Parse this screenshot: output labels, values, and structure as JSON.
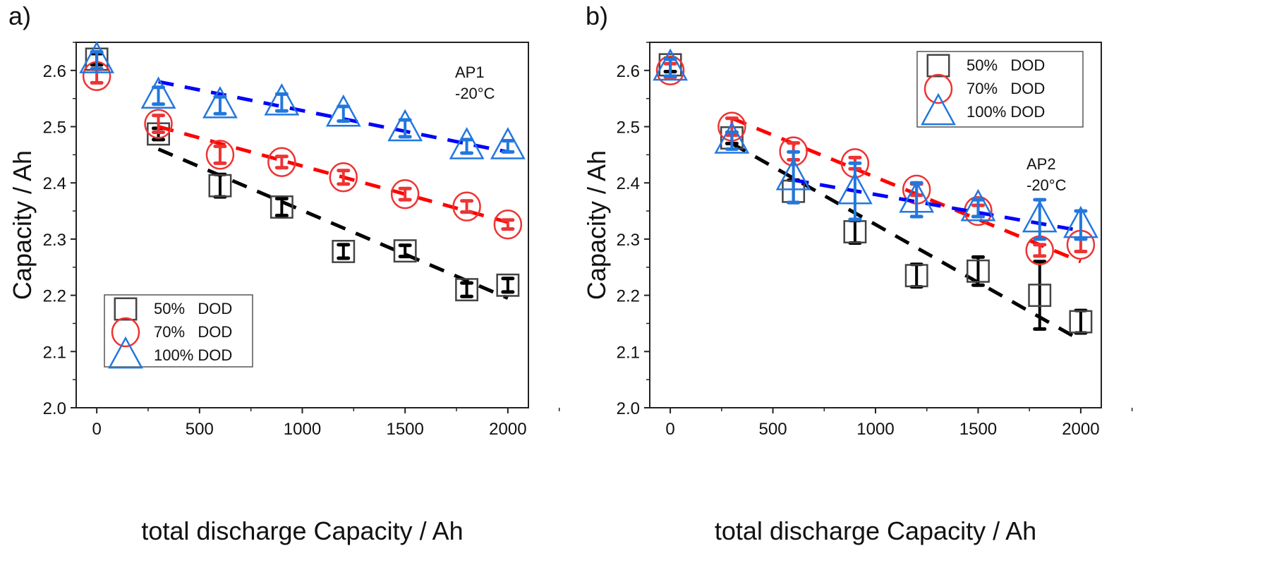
{
  "chart_data": [
    {
      "type": "scatter",
      "panel_label": "a)",
      "annotation": [
        "AP1",
        "-20°C"
      ],
      "xlabel": "total discharge Capacity / Ah",
      "ylabel": "Capacity / Ah",
      "xlim": [
        -100,
        2100
      ],
      "ylim": [
        2.0,
        2.65
      ],
      "xticks": [
        0,
        500,
        1000,
        1500,
        2000
      ],
      "yticks": [
        2.0,
        2.1,
        2.2,
        2.3,
        2.4,
        2.5,
        2.6
      ],
      "legend_position": "bottom-left",
      "x": [
        0,
        300,
        600,
        900,
        1200,
        1500,
        1800,
        2000
      ],
      "series": [
        {
          "name": "50%   DOD",
          "marker": "square",
          "color": "#444444",
          "fit_color": "#000000",
          "values": [
            2.62,
            2.487,
            2.395,
            2.357,
            2.278,
            2.279,
            2.21,
            2.218
          ],
          "errors": [
            0.01,
            0.01,
            0.02,
            0.015,
            0.012,
            0.01,
            0.012,
            0.012
          ],
          "fit": [
            [
              300,
              2.46
            ],
            [
              2000,
              2.195
            ]
          ]
        },
        {
          "name": "70%   DOD",
          "marker": "circle",
          "color": "#ee3333",
          "fit_color": "#ff0000",
          "values": [
            2.59,
            2.505,
            2.45,
            2.437,
            2.41,
            2.38,
            2.358,
            2.326
          ],
          "errors": [
            0.012,
            0.015,
            0.015,
            0.01,
            0.012,
            0.01,
            0.01,
            0.008
          ],
          "fit": [
            [
              300,
              2.5
            ],
            [
              2000,
              2.33
            ]
          ]
        },
        {
          "name": "100% DOD",
          "marker": "triangle",
          "color": "#2277dd",
          "fit_color": "#0000ff",
          "values": [
            2.618,
            2.555,
            2.538,
            2.543,
            2.523,
            2.497,
            2.465,
            2.465
          ],
          "errors": [
            0.015,
            0.015,
            0.015,
            0.015,
            0.013,
            0.015,
            0.012,
            0.01
          ],
          "fit": [
            [
              300,
              2.58
            ],
            [
              2000,
              2.455
            ]
          ]
        }
      ]
    },
    {
      "type": "scatter",
      "panel_label": "b)",
      "annotation": [
        "AP2",
        "-20°C"
      ],
      "xlabel": "total discharge Capacity / Ah",
      "ylabel": "Capacity / Ah",
      "xlim": [
        -100,
        2100
      ],
      "ylim": [
        2.0,
        2.65
      ],
      "xticks": [
        0,
        500,
        1000,
        1500,
        2000
      ],
      "yticks": [
        2.0,
        2.1,
        2.2,
        2.3,
        2.4,
        2.5,
        2.6
      ],
      "legend_position": "top-right",
      "x": [
        0,
        300,
        600,
        900,
        1200,
        1500,
        1800,
        2000
      ],
      "series": [
        {
          "name": "50%   DOD",
          "marker": "square",
          "color": "#444444",
          "fit_color": "#000000",
          "values": [
            2.61,
            2.48,
            2.385,
            2.313,
            2.235,
            2.243,
            2.2,
            2.153
          ],
          "errors": [
            0.012,
            0.01,
            0.02,
            0.02,
            0.02,
            0.025,
            0.06,
            0.02
          ],
          "fit": [
            [
              300,
              2.47
            ],
            [
              2000,
              2.12
            ]
          ]
        },
        {
          "name": "70%   DOD",
          "marker": "circle",
          "color": "#ee3333",
          "fit_color": "#ff0000",
          "values": [
            2.6,
            2.5,
            2.456,
            2.435,
            2.388,
            2.35,
            2.28,
            2.29
          ],
          "errors": [
            0.012,
            0.015,
            0.015,
            0.01,
            0.01,
            0.01,
            0.01,
            0.012
          ],
          "fit": [
            [
              300,
              2.515
            ],
            [
              2000,
              2.26
            ]
          ]
        },
        {
          "name": "100% DOD",
          "marker": "triangle",
          "color": "#2277dd",
          "fit_color": "#0000ff",
          "values": [
            2.605,
            2.475,
            2.41,
            2.385,
            2.37,
            2.355,
            2.335,
            2.325
          ],
          "errors": [
            0.015,
            0.015,
            0.045,
            0.05,
            0.03,
            0.015,
            0.035,
            0.025
          ],
          "fit": [
            [
              600,
              2.405
            ],
            [
              2000,
              2.315
            ]
          ]
        }
      ]
    }
  ]
}
